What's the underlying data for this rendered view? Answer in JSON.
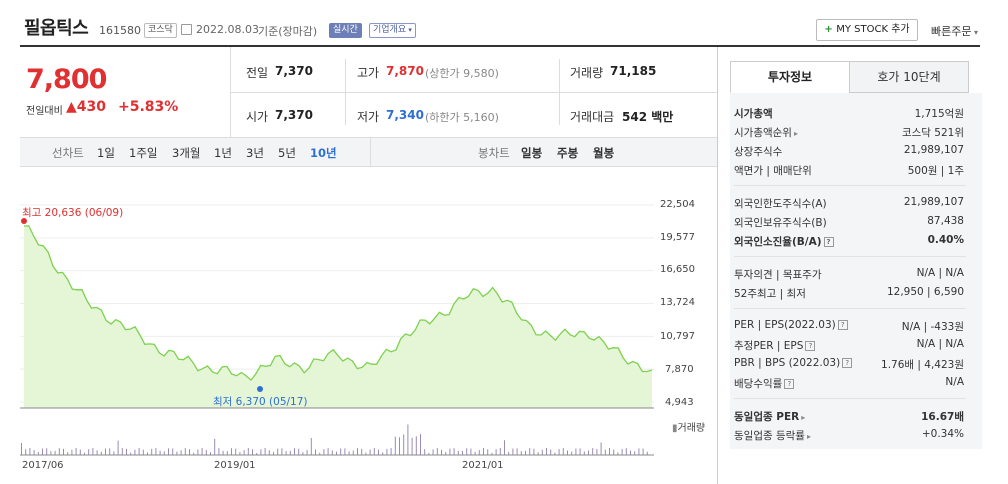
{
  "header": {
    "name": "필옵틱스",
    "code": "161580",
    "market": "코스닥",
    "date": "2022.08.03",
    "basis": "기준(장마감)",
    "realtime_label": "실시간",
    "company_overview_label": "기업개요",
    "my_stock_label": "MY STOCK 추가",
    "quick_order_label": "빠른주문"
  },
  "price": {
    "current": "7,800",
    "change_label": "전일대비",
    "change": "430",
    "change_pct": "+5.83%"
  },
  "summary": {
    "prev_close_label": "전일",
    "prev_close": "7,370",
    "high_label": "고가",
    "high": "7,870",
    "upper_limit": "(상한가 9,580)",
    "volume_label": "거래량",
    "volume": "71,185",
    "open_label": "시가",
    "open": "7,370",
    "low_label": "저가",
    "low": "7,340",
    "lower_limit": "(하한가 5,160)",
    "amount_label": "거래대금",
    "amount": "542 백만"
  },
  "line_chart_label": "선차트",
  "periods": [
    "1일",
    "1주일",
    "3개월",
    "1년",
    "3년",
    "5년",
    "10년"
  ],
  "active_period": "10년",
  "candle_chart_label": "봉차트",
  "candle_periods": [
    "일봉",
    "주봉",
    "월봉"
  ],
  "chart_data": {
    "type": "area",
    "y_ticks": [
      "22,504",
      "19,577",
      "16,650",
      "13,724",
      "10,797",
      "7,870",
      "4,943"
    ],
    "ylim": [
      4943,
      22504
    ],
    "x_ticks": [
      "2017/06",
      "2019/01",
      "2021/01"
    ],
    "high_annotation": "최고 20,636 (06/09)",
    "low_annotation": "최저 6,370 (05/17)",
    "volume_label": "거래량",
    "x": [
      "2017/06",
      "2017/09",
      "2018/01",
      "2018/04",
      "2018/07",
      "2018/10",
      "2019/01",
      "2019/04",
      "2019/07",
      "2019/10",
      "2020/01",
      "2020/04",
      "2020/07",
      "2020/10",
      "2021/01",
      "2021/04",
      "2021/07",
      "2021/10",
      "2022/01",
      "2022/04",
      "2022/08"
    ],
    "values": [
      20636,
      17200,
      13800,
      12000,
      10200,
      8700,
      7900,
      7200,
      8600,
      8100,
      9300,
      7800,
      10600,
      12300,
      14200,
      15100,
      11800,
      10700,
      11200,
      9000,
      7800
    ],
    "color": "#7ed14f",
    "fill": "#e4f6d6"
  },
  "tabs": [
    "투자정보",
    "호가 10단계"
  ],
  "invest_info": {
    "market_cap_label": "시가총액",
    "market_cap": "1,715억원",
    "market_cap_rank_label": "시가총액순위",
    "market_cap_rank": "코스닥 521위",
    "listed_shares_label": "상장주식수",
    "listed_shares": "21,989,107",
    "par_label": "액면가 | 매매단위",
    "par": "500원 | 1주",
    "foreign_limit_label": "외국인한도주식수(A)",
    "foreign_limit": "21,989,107",
    "foreign_hold_label": "외국인보유주식수(B)",
    "foreign_hold": "87,438",
    "foreign_ratio_label": "외국인소진율(B/A)",
    "foreign_ratio": "0.40%",
    "opinion_label": "투자의견 | 목표주가",
    "opinion": "N/A | N/A",
    "week52_label": "52주최고 | 최저",
    "week52": "12,950 | 6,590",
    "per_label": "PER | EPS(2022.03)",
    "per": "N/A | -433원",
    "est_per_label": "추정PER | EPS",
    "est_per": "N/A | N/A",
    "pbr_label": "PBR | BPS (2022.03)",
    "pbr": "1.76배 | 4,423원",
    "dividend_label": "배당수익률",
    "dividend": "N/A",
    "sector_per_label": "동일업종 PER",
    "sector_per": "16.67배",
    "sector_change_label": "동일업종 등락률",
    "sector_change": "+0.34%"
  },
  "colors": {
    "up": "#e03030",
    "down": "#2f6fd1",
    "accent": "#6d7fb7"
  }
}
